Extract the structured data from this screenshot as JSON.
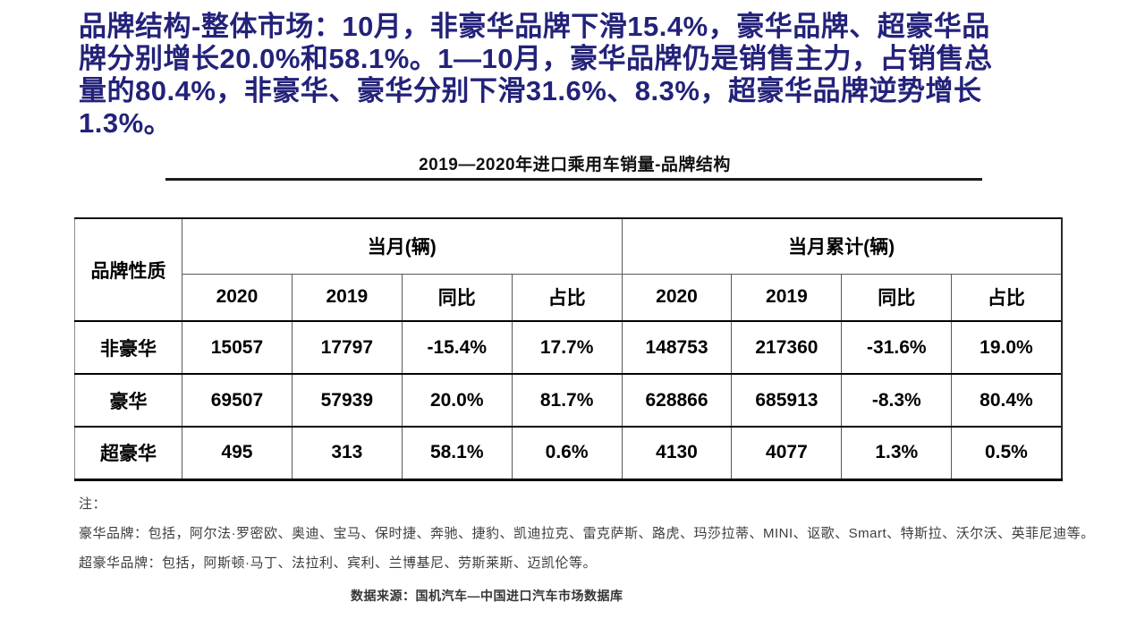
{
  "headline": {
    "color": "#23227a",
    "lines": [
      "品牌结构-整体市场：10月，非豪华品牌下滑15.4%，豪华品牌、超豪华品",
      "牌分别增长20.0%和58.1%。1—10月，豪华品牌仍是销售主力，占销售总",
      "量的80.4%，非豪华、豪华分别下滑31.6%、8.3%，超豪华品牌逆势增长",
      "1.3%。"
    ]
  },
  "chart": {
    "title": "2019—2020年进口乘用车销量-品牌结构"
  },
  "table": {
    "corner_header": "品牌性质",
    "group_headers": [
      "当月(辆)",
      "当月累计(辆)"
    ],
    "sub_headers": [
      "2020",
      "2019",
      "同比",
      "占比",
      "2020",
      "2019",
      "同比",
      "占比"
    ],
    "rows": [
      {
        "label": "非豪华",
        "values": [
          "15057",
          "17797",
          "-15.4%",
          "17.7%",
          "148753",
          "217360",
          "-31.6%",
          "19.0%"
        ]
      },
      {
        "label": "豪华",
        "values": [
          "69507",
          "57939",
          "20.0%",
          "81.7%",
          "628866",
          "685913",
          "-8.3%",
          "80.4%"
        ]
      },
      {
        "label": "超豪华",
        "values": [
          "495",
          "313",
          "58.1%",
          "0.6%",
          "4130",
          "4077",
          "1.3%",
          "0.5%"
        ]
      }
    ]
  },
  "notes": {
    "label": "注：",
    "luxury": "豪华品牌：包括，阿尔法·罗密欧、奥迪、宝马、保时捷、奔驰、捷豹、凯迪拉克、雷克萨斯、路虎、玛莎拉蒂、MINI、讴歌、Smart、特斯拉、沃尔沃、英菲尼迪等。",
    "super_luxury": "超豪华品牌：包括，阿斯顿·马丁、法拉利、宾利、兰博基尼、劳斯莱斯、迈凯伦等。"
  },
  "source": "数据来源：国机汽车—中国进口汽车市场数据库"
}
